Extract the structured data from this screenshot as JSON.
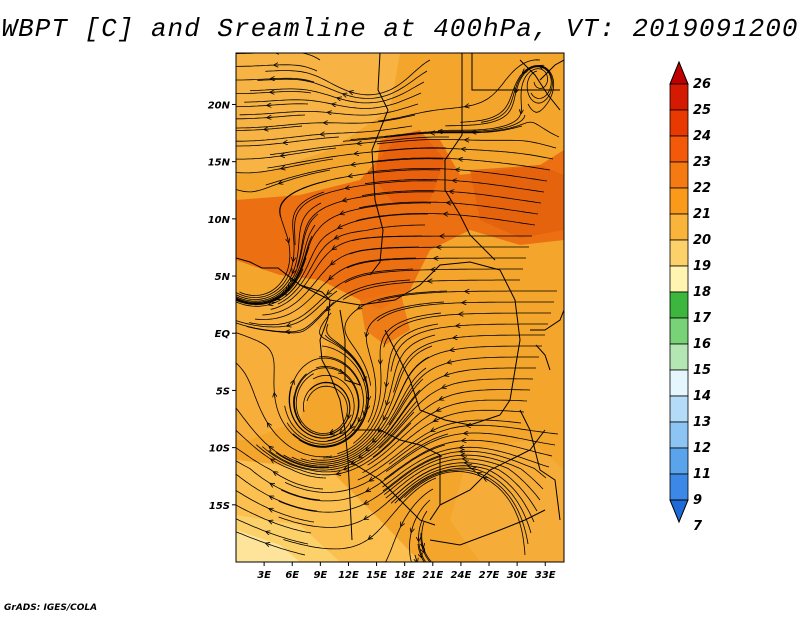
{
  "title": "WBPT [C] and Sreamline at 400hPa, VT: 2019091200",
  "credit": "GrADS: IGES/COLA",
  "map": {
    "lat_labels": [
      "20N",
      "15N",
      "10N",
      "5N",
      "EQ",
      "5S",
      "10S",
      "15S"
    ],
    "lat_values": [
      20,
      15,
      10,
      5,
      0,
      -5,
      -10,
      -15
    ],
    "lon_labels": [
      "3E",
      "6E",
      "9E",
      "12E",
      "15E",
      "18E",
      "21E",
      "24E",
      "27E",
      "30E",
      "33E"
    ],
    "lon_values": [
      3,
      6,
      9,
      12,
      15,
      18,
      21,
      24,
      27,
      30,
      33
    ],
    "lat_range": [
      -20,
      24.5
    ],
    "lon_range": [
      0,
      35
    ]
  },
  "colorbar": {
    "labels": [
      "26",
      "25",
      "24",
      "23",
      "22",
      "21",
      "20",
      "19",
      "18",
      "17",
      "16",
      "15",
      "14",
      "13",
      "12",
      "11",
      "9",
      "7"
    ],
    "colors": [
      "#c00000",
      "#d41a00",
      "#e83a00",
      "#f25a0a",
      "#f67a12",
      "#f99a1a",
      "#fbb43a",
      "#fdd16a",
      "#fff4b0",
      "#3cb63c",
      "#78d278",
      "#b4e6b4",
      "#e6f6ff",
      "#b4dcf8",
      "#8cc4f4",
      "#5aa4ec",
      "#3c88e6",
      "#1e6ad8"
    ]
  },
  "colors": {
    "background": "#ffffff",
    "field_base": "#f4a52c",
    "field_hot": "#ea6a10",
    "field_cool": "#fbc050"
  }
}
